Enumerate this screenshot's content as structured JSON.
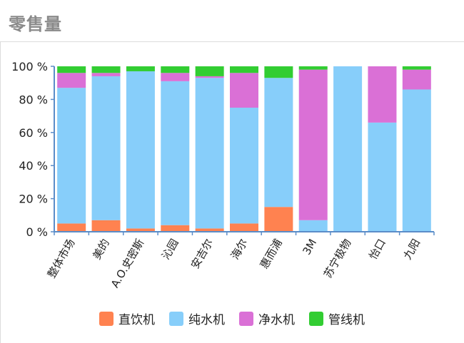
{
  "title": "零售量",
  "chart_data": {
    "type": "bar",
    "stacked": true,
    "categories": [
      "整体市场",
      "美的",
      "A.O.史密斯",
      "沁园",
      "安吉尔",
      "海尔",
      "惠而浦",
      "3M",
      "苏宁极物",
      "怡口",
      "九阳"
    ],
    "series": [
      {
        "name": "直饮机",
        "color": "#FF8250",
        "values": [
          5,
          7,
          2,
          4,
          2,
          5,
          15,
          0,
          0,
          0,
          0
        ]
      },
      {
        "name": "纯水机",
        "color": "#87CEFA",
        "values": [
          82,
          87,
          95,
          87,
          91,
          70,
          78,
          7,
          100,
          66,
          86
        ]
      },
      {
        "name": "净水机",
        "color": "#DA70D6",
        "values": [
          9,
          2,
          0,
          5,
          1,
          21,
          0,
          91,
          0,
          34,
          12
        ]
      },
      {
        "name": "管线机",
        "color": "#32CD32",
        "values": [
          4,
          4,
          3,
          4,
          6,
          4,
          7,
          2,
          0,
          0,
          2
        ]
      }
    ],
    "yticks": [
      "0 %",
      "20 %",
      "40 %",
      "60 %",
      "80 %",
      "100 %"
    ],
    "ylim": [
      0,
      100
    ],
    "axis_color": "#5B8DC9",
    "legend_position": "bottom",
    "grid": false
  }
}
